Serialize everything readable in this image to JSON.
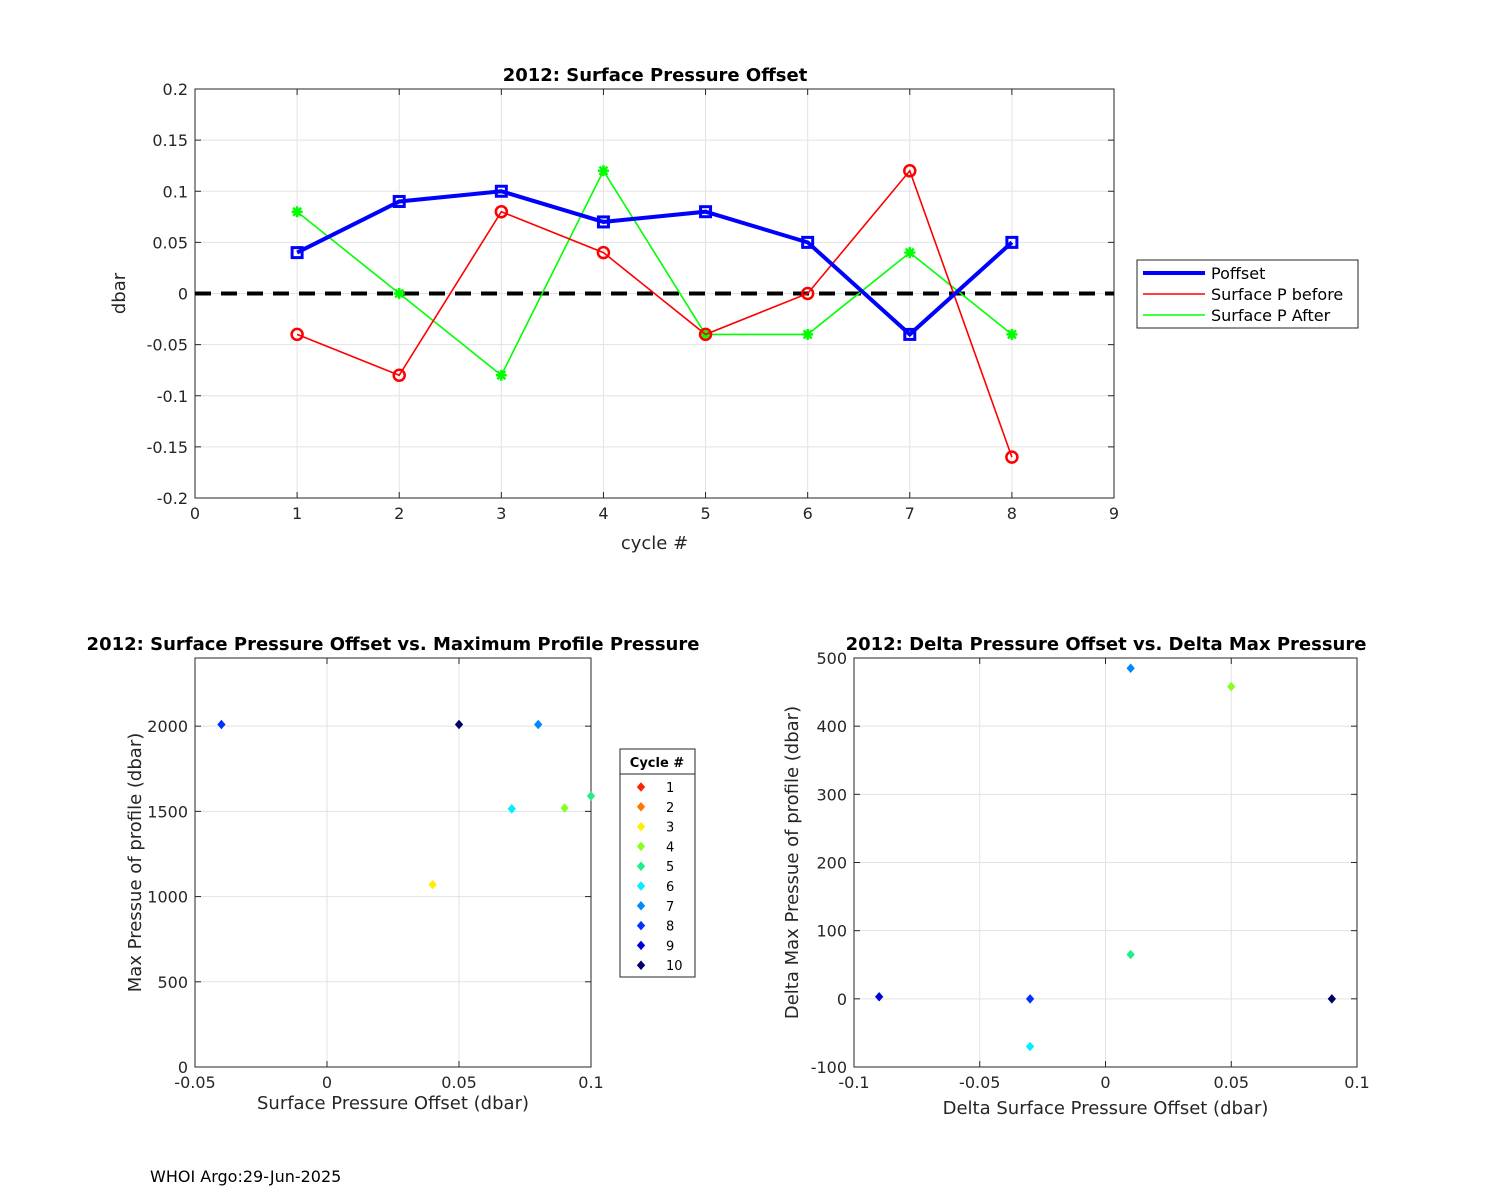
{
  "footer": "WHOI Argo:29-Jun-2025",
  "chart_data": [
    {
      "type": "line",
      "title": "2012: Surface Pressure Offset",
      "xlabel": "cycle #",
      "ylabel": "dbar",
      "xlim": [
        0,
        9
      ],
      "ylim": [
        -0.2,
        0.2
      ],
      "xticks": [
        "0",
        "1",
        "2",
        "3",
        "4",
        "5",
        "6",
        "7",
        "8",
        "9"
      ],
      "yticks": [
        "-0.2",
        "-0.15",
        "-0.1",
        "-0.05",
        "0",
        "0.05",
        "0.1",
        "0.15",
        "0.2"
      ],
      "grid": true,
      "legend": "outside-right",
      "x": [
        1,
        2,
        3,
        4,
        5,
        6,
        7,
        8
      ],
      "series": [
        {
          "name": "Poffset",
          "color": "#0000ff",
          "marker": "square",
          "values": [
            0.04,
            0.09,
            0.1,
            0.07,
            0.08,
            0.05,
            -0.04,
            0.05
          ]
        },
        {
          "name": "Surface P before",
          "color": "#ff0000",
          "marker": "circle",
          "values": [
            -0.04,
            -0.08,
            0.08,
            0.04,
            -0.04,
            0.0,
            0.12,
            -0.16
          ]
        },
        {
          "name": "Surface P After",
          "color": "#00ff00",
          "marker": "asterisk",
          "values": [
            0.08,
            0.0,
            -0.08,
            0.12,
            -0.04,
            -0.04,
            0.04,
            -0.04
          ]
        }
      ],
      "reference_line": {
        "y": 0,
        "color": "#000000",
        "style": "dashed"
      }
    },
    {
      "type": "scatter",
      "title": "2012: Surface Pressure Offset vs. Maximum Profile Pressure",
      "xlabel": "Surface Pressure Offset (dbar)",
      "ylabel": "Max Pressue of profile (dbar)",
      "xlim": [
        -0.05,
        0.1
      ],
      "ylim": [
        0,
        2400
      ],
      "y_reversed": true,
      "xticks": [
        "-0.05",
        "0",
        "0.05",
        "0.1"
      ],
      "yticks": [
        "0",
        "500",
        "1000",
        "1500",
        "2000"
      ],
      "grid": true,
      "legend": "outside-right",
      "legend_title": "Cycle #",
      "legend_entries": [
        {
          "label": "1",
          "color": "#ff2200"
        },
        {
          "label": "2",
          "color": "#ff7700"
        },
        {
          "label": "3",
          "color": "#ffee00"
        },
        {
          "label": "4",
          "color": "#88ff22"
        },
        {
          "label": "5",
          "color": "#22ee88"
        },
        {
          "label": "6",
          "color": "#00eeff"
        },
        {
          "label": "7",
          "color": "#0088ff"
        },
        {
          "label": "8",
          "color": "#0033ff"
        },
        {
          "label": "9",
          "color": "#0000dd"
        },
        {
          "label": "10",
          "color": "#000066"
        }
      ],
      "points": [
        {
          "x": 0.04,
          "y": 1070,
          "color": "#ffee00"
        },
        {
          "x": 0.07,
          "y": 1515,
          "color": "#00eeff"
        },
        {
          "x": 0.09,
          "y": 1520,
          "color": "#88ff22"
        },
        {
          "x": 0.1,
          "y": 1590,
          "color": "#22ee88"
        },
        {
          "x": -0.04,
          "y": 2010,
          "color": "#0033ff"
        },
        {
          "x": 0.05,
          "y": 2010,
          "color": "#000066"
        },
        {
          "x": 0.08,
          "y": 2010,
          "color": "#0088ff"
        }
      ]
    },
    {
      "type": "scatter",
      "title": "2012: Delta Pressure Offset vs. Delta Max Pressure",
      "xlabel": "Delta Surface Pressure Offset (dbar)",
      "ylabel": "Delta Max Pressue of profile (dbar)",
      "xlim": [
        -0.1,
        0.1
      ],
      "ylim": [
        -100,
        500
      ],
      "xticks": [
        "-0.1",
        "-0.05",
        "0",
        "0.05",
        "0.1"
      ],
      "yticks": [
        "-100",
        "0",
        "100",
        "200",
        "300",
        "400",
        "500"
      ],
      "grid": true,
      "points": [
        {
          "x": 0.01,
          "y": 485,
          "color": "#0088ff"
        },
        {
          "x": 0.05,
          "y": 458,
          "color": "#88ff22"
        },
        {
          "x": 0.01,
          "y": 65,
          "color": "#22ee88"
        },
        {
          "x": -0.09,
          "y": 3,
          "color": "#0000dd"
        },
        {
          "x": -0.03,
          "y": 0,
          "color": "#0033ff"
        },
        {
          "x": 0.09,
          "y": 0,
          "color": "#000066"
        },
        {
          "x": -0.03,
          "y": -70,
          "color": "#00eeff"
        }
      ]
    }
  ]
}
